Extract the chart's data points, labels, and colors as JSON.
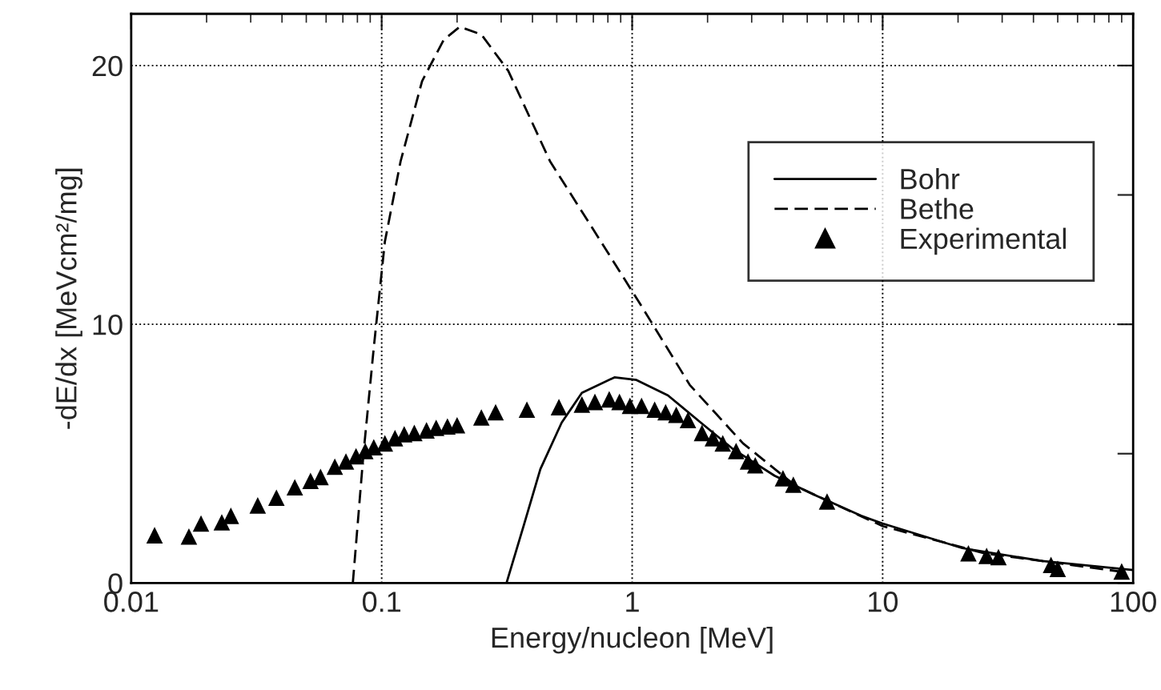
{
  "chart_data": {
    "type": "line",
    "xlabel": "Energy/nucleon [MeV]",
    "ylabel": "-dE/dx [MeVcm²/mg]",
    "log": "x",
    "xlim": [
      0.01,
      100
    ],
    "ylim": [
      0,
      22
    ],
    "xticks": [
      0.01,
      0.1,
      1,
      10,
      100
    ],
    "yticks": [
      0,
      {
        "value": 5,
        "label": null
      },
      10,
      {
        "value": 15,
        "label": null
      },
      20
    ],
    "grid": true,
    "legend": "top right",
    "series": [
      {
        "name": "Bohr",
        "color": "#000000",
        "line_style": "solid",
        "marker": "none",
        "x": [
          0.315,
          0.371,
          0.43,
          0.523,
          0.63,
          0.85,
          1.04,
          1.39,
          1.88,
          2.51,
          3.7,
          5.5,
          8.2,
          10,
          20.8,
          43.5,
          100
        ],
        "values": [
          0,
          2.3,
          4.4,
          6.2,
          7.35,
          7.95,
          7.85,
          7.25,
          6.2,
          5.2,
          4.15,
          3.35,
          2.6,
          2.3,
          1.35,
          0.85,
          0.5
        ]
      },
      {
        "name": "Bethe",
        "color": "#000000",
        "line_style": "dashed",
        "marker": "none",
        "x": [
          0.0767,
          0.0846,
          0.093,
          0.103,
          0.119,
          0.145,
          0.177,
          0.205,
          0.25,
          0.32,
          0.47,
          0.75,
          1.09,
          1.7,
          2.77,
          4.5,
          10,
          25.5,
          88
        ],
        "values": [
          0,
          5.0,
          9.1,
          13.2,
          16.3,
          19.4,
          21.0,
          21.5,
          21.2,
          19.8,
          16.3,
          13.2,
          10.7,
          7.65,
          5.4,
          3.75,
          2.2,
          1.15,
          0.45
        ]
      },
      {
        "name": "Experimental",
        "type": "scatter",
        "color": "#000000",
        "marker": "triangle",
        "x": [
          0.0124,
          0.017,
          0.019,
          0.023,
          0.025,
          0.032,
          0.038,
          0.045,
          0.052,
          0.057,
          0.065,
          0.072,
          0.079,
          0.086,
          0.093,
          0.103,
          0.113,
          0.123,
          0.135,
          0.151,
          0.165,
          0.183,
          0.2,
          0.25,
          0.285,
          0.38,
          0.51,
          0.63,
          0.71,
          0.81,
          0.89,
          0.98,
          1.09,
          1.23,
          1.36,
          1.5,
          1.67,
          1.9,
          2.1,
          2.3,
          2.6,
          2.9,
          3.1,
          4.0,
          4.4,
          6.0,
          22,
          26,
          29,
          47,
          50,
          90
        ],
        "values": [
          1.85,
          1.8,
          2.3,
          2.35,
          2.6,
          3.0,
          3.3,
          3.7,
          3.95,
          4.1,
          4.5,
          4.7,
          4.9,
          5.1,
          5.25,
          5.4,
          5.6,
          5.75,
          5.8,
          5.9,
          6.0,
          6.05,
          6.1,
          6.4,
          6.6,
          6.7,
          6.8,
          6.9,
          7.0,
          7.1,
          7.0,
          6.85,
          6.85,
          6.7,
          6.6,
          6.5,
          6.3,
          5.8,
          5.6,
          5.4,
          5.1,
          4.7,
          4.55,
          4.05,
          3.8,
          3.15,
          1.15,
          1.05,
          1.0,
          0.7,
          0.55,
          0.45
        ]
      }
    ]
  }
}
